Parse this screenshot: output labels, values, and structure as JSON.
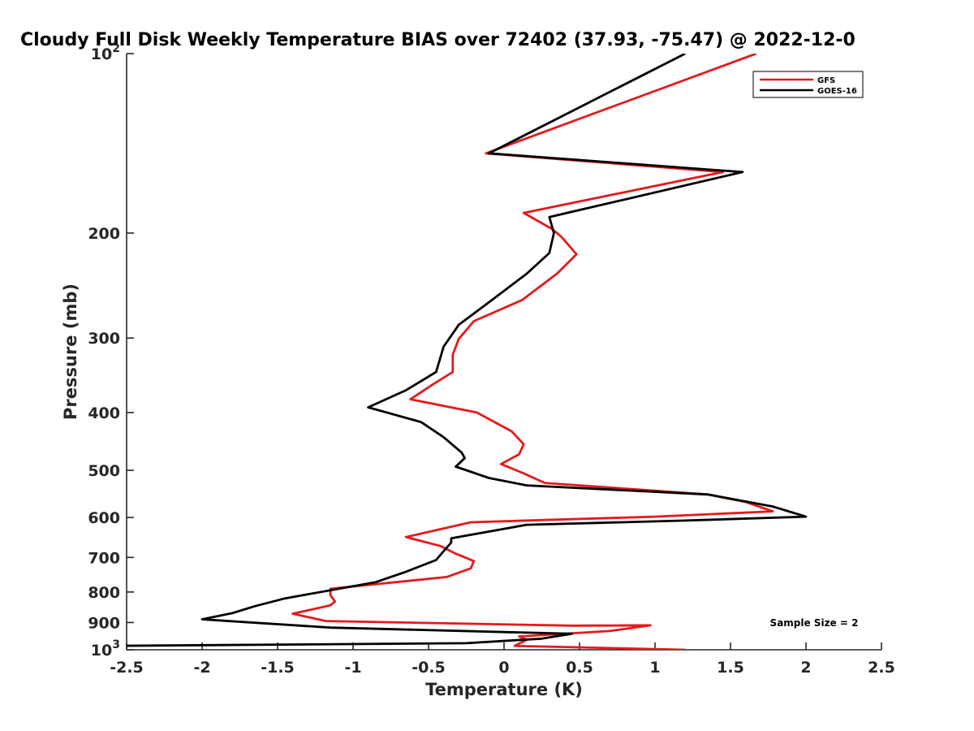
{
  "chart_data": {
    "type": "line",
    "title": "Cloudy Full Disk Weekly Temperature BIAS over 72402 (37.93, -75.47) @ 2022-12-0",
    "xlabel": "Temperature (K)",
    "ylabel": "Pressure (mb)",
    "xlim": [
      -2.5,
      2.5
    ],
    "ylim": [
      1000,
      100
    ],
    "y_scale": "log",
    "grid": false,
    "legend_position": "top-right",
    "x_ticks": [
      "-2.5",
      "-2",
      "-1.5",
      "-1",
      "-0.5",
      "0",
      "0.5",
      "1",
      "1.5",
      "2",
      "2.5"
    ],
    "y_ticks": [
      {
        "value": 100,
        "base": "10",
        "exp": "2"
      },
      {
        "value": 200,
        "label": "200"
      },
      {
        "value": 300,
        "label": "300"
      },
      {
        "value": 400,
        "label": "400"
      },
      {
        "value": 500,
        "label": "500"
      },
      {
        "value": 600,
        "label": "600"
      },
      {
        "value": 700,
        "label": "700"
      },
      {
        "value": 800,
        "label": "800"
      },
      {
        "value": 900,
        "label": "900"
      },
      {
        "value": 1000,
        "base": "10",
        "exp": "3"
      }
    ],
    "annotation": "Sample Size = 2",
    "series": [
      {
        "name": "GFS",
        "color": "#e41a1c",
        "points": [
          [
            1.67,
            100
          ],
          [
            -0.12,
            147
          ],
          [
            1.45,
            158
          ],
          [
            0.13,
            185
          ],
          [
            0.32,
            197
          ],
          [
            0.38,
            203
          ],
          [
            0.48,
            217
          ],
          [
            0.35,
            234
          ],
          [
            0.12,
            259
          ],
          [
            -0.2,
            281
          ],
          [
            -0.3,
            301
          ],
          [
            -0.34,
            320
          ],
          [
            -0.34,
            342
          ],
          [
            -0.48,
            360
          ],
          [
            -0.62,
            380
          ],
          [
            -0.18,
            400
          ],
          [
            0.05,
            430
          ],
          [
            0.13,
            452
          ],
          [
            0.1,
            470
          ],
          [
            -0.02,
            488
          ],
          [
            0.13,
            506
          ],
          [
            0.27,
            525
          ],
          [
            1.35,
            549
          ],
          [
            1.6,
            565
          ],
          [
            1.78,
            586
          ],
          [
            1.0,
            598
          ],
          [
            -0.22,
            611
          ],
          [
            -0.65,
            647
          ],
          [
            -0.42,
            670
          ],
          [
            -0.32,
            690
          ],
          [
            -0.2,
            710
          ],
          [
            -0.22,
            730
          ],
          [
            -0.38,
            755
          ],
          [
            -1.15,
            790
          ],
          [
            -1.15,
            810
          ],
          [
            -1.12,
            830
          ],
          [
            -1.15,
            842
          ],
          [
            -1.4,
            870
          ],
          [
            -1.18,
            895
          ],
          [
            0.45,
            911
          ],
          [
            0.97,
            910
          ],
          [
            0.7,
            930
          ],
          [
            0.1,
            950
          ],
          [
            0.15,
            962
          ],
          [
            0.07,
            985
          ],
          [
            1.2,
            1000
          ]
        ]
      },
      {
        "name": "GOES-16",
        "color": "#000000",
        "points": [
          [
            1.2,
            100
          ],
          [
            -0.1,
            147
          ],
          [
            1.58,
            158
          ],
          [
            0.3,
            188
          ],
          [
            0.33,
            200
          ],
          [
            0.3,
            216
          ],
          [
            0.15,
            234
          ],
          [
            -0.08,
            259
          ],
          [
            -0.3,
            285
          ],
          [
            -0.4,
            310
          ],
          [
            -0.45,
            342
          ],
          [
            -0.65,
            367
          ],
          [
            -0.9,
            392
          ],
          [
            -0.55,
            415
          ],
          [
            -0.4,
            440
          ],
          [
            -0.28,
            467
          ],
          [
            -0.26,
            477
          ],
          [
            -0.32,
            493
          ],
          [
            -0.1,
            515
          ],
          [
            0.15,
            530
          ],
          [
            1.35,
            549
          ],
          [
            1.78,
            575
          ],
          [
            2.0,
            598
          ],
          [
            1.2,
            607
          ],
          [
            0.15,
            617
          ],
          [
            -0.35,
            650
          ],
          [
            -0.35,
            661
          ],
          [
            -0.4,
            683
          ],
          [
            -0.45,
            707
          ],
          [
            -0.65,
            740
          ],
          [
            -0.85,
            770
          ],
          [
            -1.45,
            820
          ],
          [
            -1.65,
            845
          ],
          [
            -1.8,
            868
          ],
          [
            -2.0,
            889
          ],
          [
            -1.15,
            918
          ],
          [
            0.45,
            940
          ],
          [
            0.25,
            958
          ],
          [
            -0.25,
            975
          ],
          [
            -2.6,
            985
          ]
        ]
      }
    ]
  }
}
